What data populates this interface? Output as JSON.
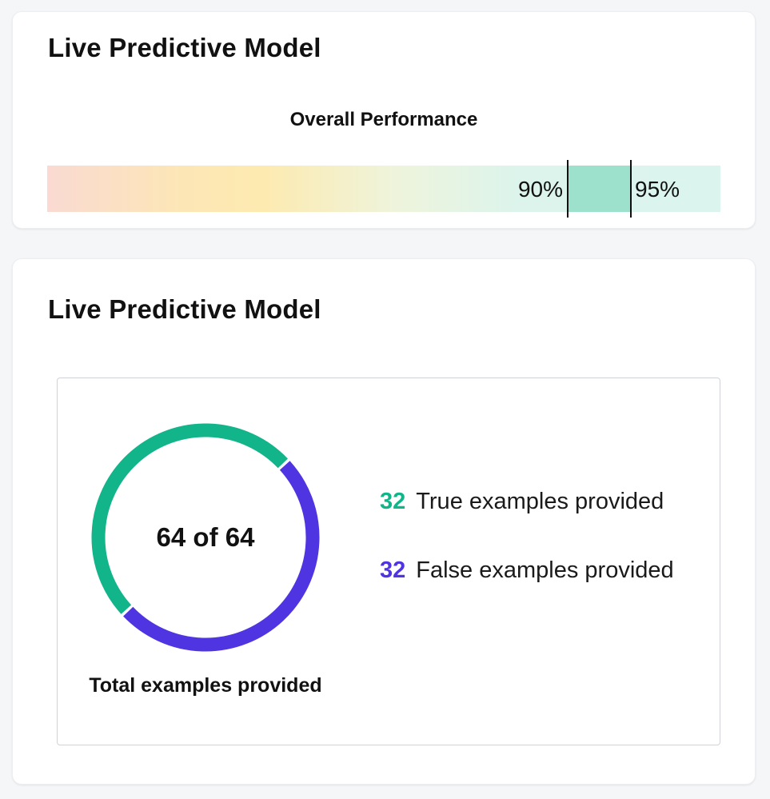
{
  "performance_card": {
    "title": "Live Predictive Model",
    "subtitle": "Overall Performance",
    "range_low_label": "90%",
    "range_high_label": "95%",
    "range_low": 0.9,
    "range_high": 0.95,
    "target_color": "#9de1cd"
  },
  "examples_card": {
    "title": "Live Predictive Model",
    "donut_center": "64 of 64",
    "caption": "Total examples provided",
    "total": 64,
    "legend": [
      {
        "count": "32",
        "label": "True examples provided",
        "value": 32,
        "color": "#12b48a"
      },
      {
        "count": "32",
        "label": "False examples provided",
        "value": 32,
        "color": "#4f35e2"
      }
    ]
  }
}
